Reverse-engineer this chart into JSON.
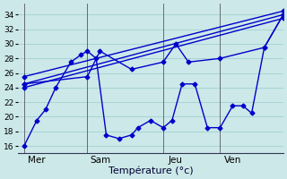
{
  "xlabel": "Température (°c)",
  "bg_color": "#cce8e8",
  "line_color": "#0000cc",
  "grid_color": "#99cccc",
  "vline_color": "#555566",
  "ylim": [
    15.0,
    35.5
  ],
  "yticks": [
    16,
    18,
    20,
    22,
    24,
    26,
    28,
    30,
    32,
    34
  ],
  "xlim": [
    0,
    21
  ],
  "day_labels": [
    {
      "label": "Mer",
      "x": 1.5
    },
    {
      "label": "Sam",
      "x": 6.5
    },
    {
      "label": "Jeu",
      "x": 12.5
    },
    {
      "label": "Ven",
      "x": 17.0
    }
  ],
  "vlines": [
    0.5,
    5.5,
    11.5,
    16.0
  ],
  "series": [
    {
      "x": [
        0.5,
        1.5,
        2.2,
        3.0,
        4.2,
        5.0,
        5.5,
        6.2,
        7.0,
        8.0,
        9.0,
        9.5,
        10.5,
        11.5,
        12.2,
        13.0,
        14.0,
        15.0,
        16.0,
        17.0,
        17.8,
        18.5,
        19.5,
        21.0
      ],
      "y": [
        16,
        19.5,
        21,
        24,
        27.5,
        28.5,
        29,
        28,
        17.5,
        17,
        17.5,
        18.5,
        19.5,
        18.5,
        19.5,
        24.5,
        24.5,
        18.5,
        18.5,
        21.5,
        21.5,
        20.5,
        29.5,
        34
      ]
    },
    {
      "x": [
        0.5,
        21.0
      ],
      "y": [
        24.0,
        33.5
      ]
    },
    {
      "x": [
        0.5,
        21.0
      ],
      "y": [
        24.5,
        34.0
      ]
    },
    {
      "x": [
        0.5,
        21.0
      ],
      "y": [
        25.5,
        34.5
      ]
    },
    {
      "x": [
        0.5,
        5.5,
        6.5,
        9.0,
        11.5,
        12.5,
        13.5,
        16.0,
        19.5,
        21.0
      ],
      "y": [
        24.5,
        25.5,
        29.0,
        26.5,
        27.5,
        30.0,
        27.5,
        28.0,
        29.5,
        34.0
      ]
    }
  ],
  "marker": "D",
  "markersize": 2.5,
  "linewidth": 1.0,
  "xlabel_fontsize": 8,
  "tick_fontsize": 6.5,
  "day_label_fontsize": 7.5
}
